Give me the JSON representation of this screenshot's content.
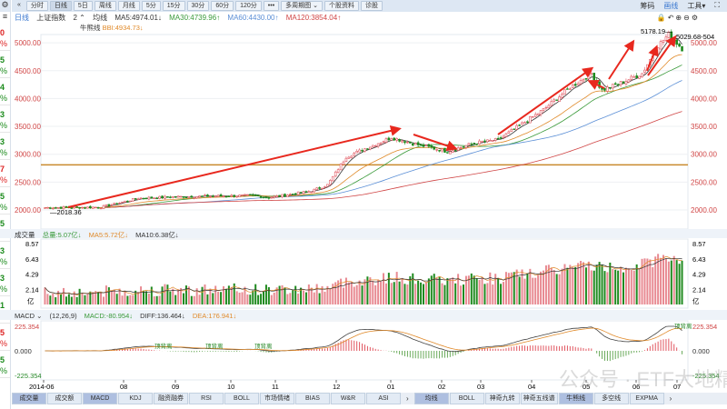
{
  "left_strip": {
    "gear": "⚙",
    "menu": "≡",
    "cells": [
      {
        "d": "0",
        "c": "#d22"
      },
      {
        "d": "5",
        "c": "#1a8a1a"
      },
      {
        "d": "4",
        "c": "#1a8a1a"
      },
      {
        "d": "3",
        "c": "#1a8a1a"
      },
      {
        "d": "3",
        "c": "#1a8a1a"
      },
      {
        "d": "7",
        "c": "#d22"
      },
      {
        "d": "5",
        "c": "#1a8a1a"
      },
      {
        "d": "5",
        "c": "#1a8a1a"
      },
      {
        "d": "3",
        "c": "#1a8a1a"
      },
      {
        "d": "3",
        "c": "#1a8a1a"
      },
      {
        "d": "1",
        "c": "#1a8a1a"
      },
      {
        "d": "5",
        "c": "#d22"
      },
      {
        "d": "5",
        "c": "#1a8a1a"
      }
    ],
    "pct": "%"
  },
  "toolbar": {
    "collapse": "«",
    "periods": [
      "分时",
      "日线",
      "5日",
      "周线",
      "月线",
      "5分",
      "15分",
      "30分",
      "60分",
      "120分"
    ],
    "active": "日线",
    "more": "•••",
    "multi": "多周期图 ⌄",
    "profile": "个股资料",
    "diagnose": "诊股",
    "right": [
      "筹码",
      "画线",
      "工具▾",
      "⛶"
    ]
  },
  "info": {
    "period": "日线",
    "name": "上证指数",
    "count": "2 ⌃",
    "ma_label": "均线",
    "ma5": "MA5:4974.01↓",
    "ma30": "MA30:4739.96↑",
    "ma60": "MA60:4430.00↑",
    "ma120": "MA120:3854.04↑",
    "bull_label": "牛熊线",
    "bbi": "BBI:4934.73↓"
  },
  "controls": "🔒↶⊕⊖⚙",
  "price_axis": {
    "labels": [
      "5000.00",
      "4500.00",
      "4000.00",
      "3500.00",
      "3000.00",
      "2500.00",
      "2000.00"
    ],
    "values": [
      5000,
      4500,
      4000,
      3500,
      3000,
      2500,
      2000
    ]
  },
  "annotations": {
    "high": "5178.19—",
    "low": "—2018.36",
    "last": "5029.68-504"
  },
  "support_level": 2810,
  "price_keyframes": [
    [
      0,
      2040
    ],
    [
      21,
      2050
    ],
    [
      35,
      2210
    ],
    [
      52,
      2240
    ],
    [
      79,
      2260
    ],
    [
      84,
      2220
    ],
    [
      100,
      2340
    ],
    [
      106,
      2450
    ],
    [
      113,
      2950
    ],
    [
      120,
      3100
    ],
    [
      130,
      3300
    ],
    [
      139,
      3180
    ],
    [
      151,
      3050
    ],
    [
      161,
      3200
    ],
    [
      170,
      3260
    ],
    [
      176,
      3450
    ],
    [
      187,
      3800
    ],
    [
      197,
      4200
    ],
    [
      205,
      4450
    ],
    [
      209,
      4150
    ],
    [
      217,
      4300
    ],
    [
      224,
      4450
    ],
    [
      230,
      4950
    ],
    [
      234,
      5150
    ],
    [
      239,
      4900
    ]
  ],
  "volume": {
    "title": "成交量",
    "total": "总量:5.07亿↓",
    "ma5": "MA5:5.72亿↓",
    "ma10": "MA10:6.38亿↓",
    "labels": [
      "8.57",
      "6.43",
      "4.29",
      "2.14"
    ],
    "values": [
      8.57,
      6.43,
      4.29,
      2.14
    ],
    "unit": "亿"
  },
  "macd": {
    "title": "MACD ⌄",
    "params": "(12,26,9)",
    "macd": "MACD:-80.954↓",
    "diff": "DIFF:136.464↓",
    "dea": "DEA:176.941↓",
    "labels": [
      "225.354",
      "0.000",
      "-225.354"
    ],
    "divergence": "顶背离"
  },
  "date_axis": [
    "2014-06",
    "08",
    "09",
    "10",
    "11",
    "12",
    "01",
    "02",
    "03",
    "04",
    "05",
    "06",
    "07"
  ],
  "bottom_tabs_left": [
    "成交量",
    "成交额",
    "MACD",
    "KDJ",
    "融资融券",
    "RSI",
    "BOLL",
    "市场情绪",
    "BIAS",
    "W&R",
    "ASI"
  ],
  "bottom_tabs_right": [
    "均线",
    "BOLL",
    "神奇九转",
    "神奇五线谱",
    "牛熊线",
    "多空线",
    "EXPMA"
  ],
  "bottom_active": [
    "成交量",
    "MACD",
    "均线",
    "牛熊线"
  ],
  "more_arrow": "›",
  "watermark": "公众号 · ETF大地精",
  "colors": {
    "up": "#e0555f",
    "down": "#1f8a1f",
    "ma5": "#333",
    "ma30": "#3a9a3a",
    "ma60": "#5b8fd6",
    "ma120": "#d04545",
    "bbi": "#e08a2a",
    "arrow": "#e8281e",
    "level": "#c98a2e"
  }
}
